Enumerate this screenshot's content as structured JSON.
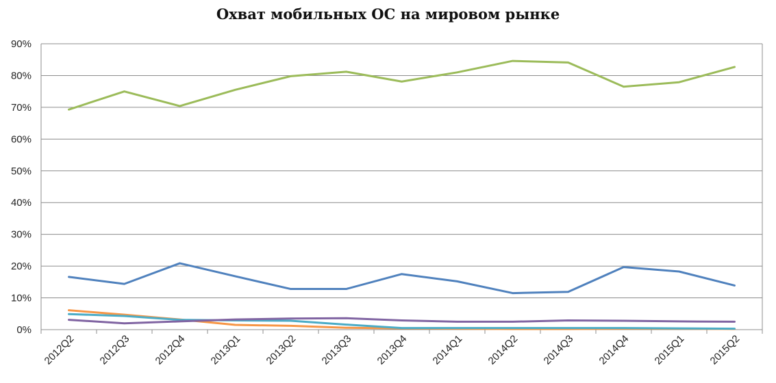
{
  "chart_data": {
    "type": "line",
    "title": "Охват мобильных ОС на мировом рынке",
    "xlabel": "",
    "ylabel": "",
    "categories": [
      "2012Q2",
      "2012Q3",
      "2012Q4",
      "2013Q1",
      "2013Q2",
      "2013Q3",
      "2013Q4",
      "2014Q1",
      "2014Q2",
      "2014Q3",
      "2014Q4",
      "2015Q1",
      "2015Q2"
    ],
    "ylim": [
      0,
      90
    ],
    "yticks": [
      "0%",
      "10%",
      "20%",
      "30%",
      "40%",
      "50%",
      "60%",
      "70%",
      "80%",
      "90%"
    ],
    "grid": true,
    "legend": "none",
    "series": [
      {
        "color": "#9bbb59",
        "values": [
          69.3,
          75.0,
          70.4,
          75.5,
          79.8,
          81.2,
          78.1,
          81.0,
          84.6,
          84.1,
          76.5,
          77.9,
          82.7
        ]
      },
      {
        "color": "#4f81bd",
        "values": [
          16.6,
          14.4,
          20.9,
          16.8,
          12.8,
          12.8,
          17.5,
          15.2,
          11.5,
          11.9,
          19.7,
          18.3,
          13.9
        ]
      },
      {
        "color": "#8064a2",
        "values": [
          3.1,
          2.0,
          2.6,
          3.2,
          3.5,
          3.6,
          2.9,
          2.5,
          2.5,
          2.9,
          2.8,
          2.6,
          2.5
        ]
      },
      {
        "color": "#4bacc6",
        "values": [
          4.9,
          4.3,
          3.1,
          2.9,
          2.8,
          1.6,
          0.5,
          0.5,
          0.5,
          0.5,
          0.5,
          0.4,
          0.3
        ]
      },
      {
        "color": "#f79646",
        "values": [
          6.1,
          4.7,
          3.2,
          1.5,
          1.2,
          0.6,
          0.4,
          0.3,
          0.2,
          0.2,
          0.3,
          0.3,
          0.2
        ]
      }
    ]
  }
}
